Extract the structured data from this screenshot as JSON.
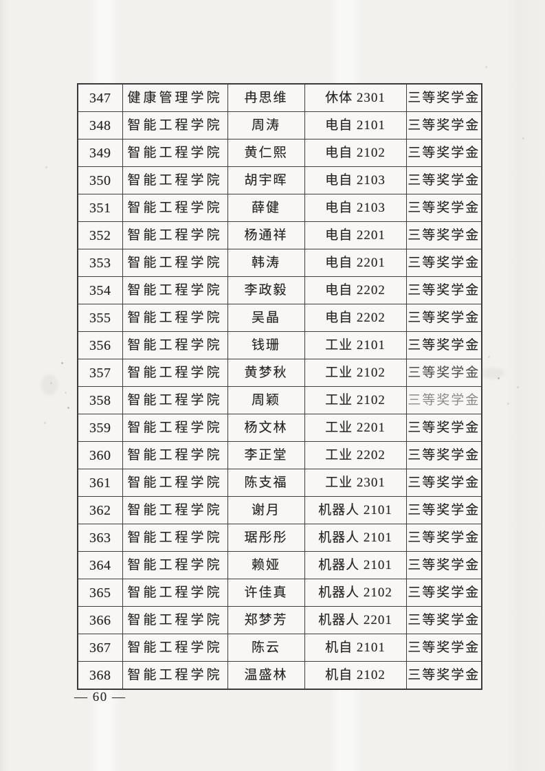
{
  "page": {
    "footer_page_number": "— 60 —"
  },
  "table": {
    "rows": [
      {
        "no": "347",
        "college": "健康管理学院",
        "name": "冉思维",
        "class_name": "休体 2301",
        "award": "三等奖学金"
      },
      {
        "no": "348",
        "college": "智能工程学院",
        "name": "周涛",
        "class_name": "电自 2101",
        "award": "三等奖学金"
      },
      {
        "no": "349",
        "college": "智能工程学院",
        "name": "黄仁熙",
        "class_name": "电自 2102",
        "award": "三等奖学金"
      },
      {
        "no": "350",
        "college": "智能工程学院",
        "name": "胡宇晖",
        "class_name": "电自 2103",
        "award": "三等奖学金"
      },
      {
        "no": "351",
        "college": "智能工程学院",
        "name": "薛健",
        "class_name": "电自 2103",
        "award": "三等奖学金"
      },
      {
        "no": "352",
        "college": "智能工程学院",
        "name": "杨通祥",
        "class_name": "电自 2201",
        "award": "三等奖学金"
      },
      {
        "no": "353",
        "college": "智能工程学院",
        "name": "韩涛",
        "class_name": "电自 2201",
        "award": "三等奖学金"
      },
      {
        "no": "354",
        "college": "智能工程学院",
        "name": "李政毅",
        "class_name": "电自 2202",
        "award": "三等奖学金"
      },
      {
        "no": "355",
        "college": "智能工程学院",
        "name": "吴晶",
        "class_name": "电自 2202",
        "award": "三等奖学金"
      },
      {
        "no": "356",
        "college": "智能工程学院",
        "name": "钱珊",
        "class_name": "工业 2101",
        "award": "三等奖学金"
      },
      {
        "no": "357",
        "college": "智能工程学院",
        "name": "黄梦秋",
        "class_name": "工业 2102",
        "award": "三等奖学金"
      },
      {
        "no": "358",
        "college": "智能工程学院",
        "name": "周颖",
        "class_name": "工业 2102",
        "award": "三等奖学金"
      },
      {
        "no": "359",
        "college": "智能工程学院",
        "name": "杨文林",
        "class_name": "工业 2201",
        "award": "三等奖学金"
      },
      {
        "no": "360",
        "college": "智能工程学院",
        "name": "李正堂",
        "class_name": "工业 2202",
        "award": "三等奖学金"
      },
      {
        "no": "361",
        "college": "智能工程学院",
        "name": "陈支福",
        "class_name": "工业 2301",
        "award": "三等奖学金"
      },
      {
        "no": "362",
        "college": "智能工程学院",
        "name": "谢月",
        "class_name": "机器人 2101",
        "award": "三等奖学金"
      },
      {
        "no": "363",
        "college": "智能工程学院",
        "name": "琚彤彤",
        "class_name": "机器人 2101",
        "award": "三等奖学金"
      },
      {
        "no": "364",
        "college": "智能工程学院",
        "name": "赖娅",
        "class_name": "机器人 2101",
        "award": "三等奖学金"
      },
      {
        "no": "365",
        "college": "智能工程学院",
        "name": "许佳真",
        "class_name": "机器人 2102",
        "award": "三等奖学金"
      },
      {
        "no": "366",
        "college": "智能工程学院",
        "name": "郑梦芳",
        "class_name": "机器人 2201",
        "award": "三等奖学金"
      },
      {
        "no": "367",
        "college": "智能工程学院",
        "name": "陈云",
        "class_name": "机自 2101",
        "award": "三等奖学金"
      },
      {
        "no": "368",
        "college": "智能工程学院",
        "name": "温盛林",
        "class_name": "机自 2102",
        "award": "三等奖学金"
      }
    ]
  }
}
